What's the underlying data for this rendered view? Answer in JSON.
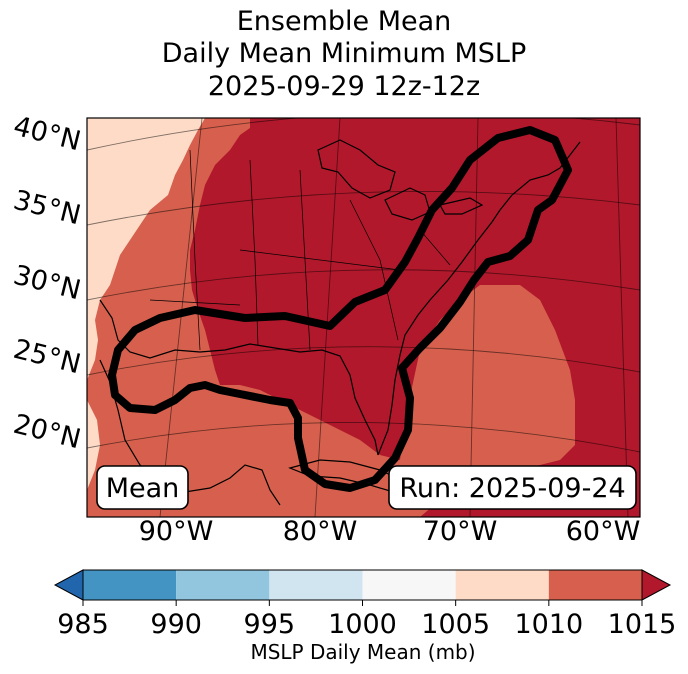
{
  "chart_data": {
    "type": "heatmap",
    "title_lines": [
      "Ensemble Mean",
      "Daily Mean Minimum MSLP",
      "2025-09-29 12z-12z"
    ],
    "lat_labels": [
      "40°N",
      "35°N",
      "30°N",
      "25°N",
      "20°N"
    ],
    "lon_labels": [
      "90°W",
      "80°W",
      "70°W",
      "60°W"
    ],
    "annotation_left": "Mean",
    "annotation_right": "Run: 2025-09-24",
    "colorbar": {
      "label": "MSLP Daily Mean (mb)",
      "ticks": [
        "985",
        "990",
        "995",
        "1000",
        "1005",
        "1010",
        "1015"
      ],
      "bins": [
        {
          "from": 985,
          "to": 990,
          "color": "#4393c3"
        },
        {
          "from": 990,
          "to": 995,
          "color": "#92c5de"
        },
        {
          "from": 995,
          "to": 1000,
          "color": "#d1e5f0"
        },
        {
          "from": 1000,
          "to": 1005,
          "color": "#f7f7f7"
        },
        {
          "from": 1005,
          "to": 1010,
          "color": "#fddbc7"
        },
        {
          "from": 1010,
          "to": 1015,
          "color": "#d6604d"
        }
      ],
      "under_color": "#2166ac",
      "over_color": "#b2182b"
    },
    "field_colors": {
      "above_1015": "#b2182b",
      "1010_1015": "#d6604d",
      "1005_1010": "#fddbc7"
    }
  }
}
